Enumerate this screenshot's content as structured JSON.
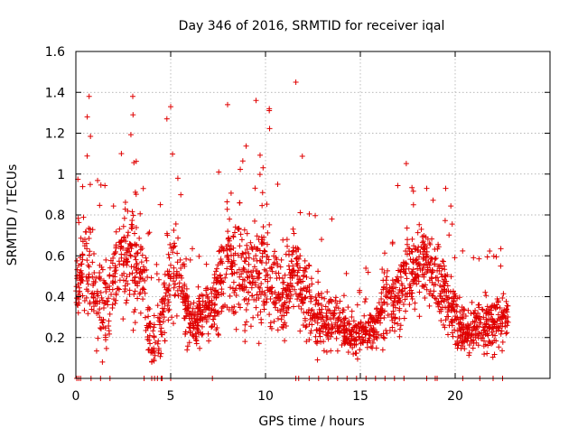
{
  "chart_data": {
    "type": "scatter",
    "title": "Day 346 of 2016, SRMTID for receiver iqal",
    "xlabel": "GPS time / hours",
    "ylabel": "SRMTID / TECUs",
    "xlim": [
      0,
      25
    ],
    "ylim": [
      0,
      1.6
    ],
    "x_ticks": [
      "0",
      "5",
      "10",
      "15",
      "20"
    ],
    "y_ticks": [
      "0",
      "0.2",
      "0.4",
      "0.6",
      "0.8",
      "1",
      "1.2",
      "1.4",
      "1.6"
    ],
    "x_tick_values": [
      0,
      5,
      10,
      15,
      20
    ],
    "y_tick_values": [
      0,
      0.2,
      0.4,
      0.6,
      0.8,
      1.0,
      1.2,
      1.4,
      1.6
    ],
    "grid": true,
    "marker": "+",
    "color": "#e00000",
    "series": [
      {
        "name": "SRMTID",
        "envelope_mean": [
          [
            0.0,
            0.48
          ],
          [
            0.5,
            0.58
          ],
          [
            1.0,
            0.42
          ],
          [
            1.5,
            0.36
          ],
          [
            2.0,
            0.5
          ],
          [
            2.5,
            0.62
          ],
          [
            3.0,
            0.6
          ],
          [
            3.5,
            0.55
          ],
          [
            4.0,
            0.12
          ],
          [
            4.5,
            0.3
          ],
          [
            5.0,
            0.55
          ],
          [
            5.5,
            0.5
          ],
          [
            6.0,
            0.26
          ],
          [
            6.5,
            0.28
          ],
          [
            7.0,
            0.35
          ],
          [
            7.5,
            0.42
          ],
          [
            8.0,
            0.62
          ],
          [
            8.5,
            0.55
          ],
          [
            9.0,
            0.45
          ],
          [
            9.5,
            0.48
          ],
          [
            10.0,
            0.55
          ],
          [
            10.5,
            0.42
          ],
          [
            11.0,
            0.4
          ],
          [
            11.5,
            0.52
          ],
          [
            12.0,
            0.42
          ],
          [
            12.5,
            0.3
          ],
          [
            13.0,
            0.28
          ],
          [
            13.5,
            0.3
          ],
          [
            14.0,
            0.25
          ],
          [
            14.5,
            0.2
          ],
          [
            15.0,
            0.2
          ],
          [
            15.5,
            0.22
          ],
          [
            16.0,
            0.3
          ],
          [
            16.5,
            0.38
          ],
          [
            17.0,
            0.4
          ],
          [
            17.5,
            0.52
          ],
          [
            18.0,
            0.55
          ],
          [
            18.5,
            0.58
          ],
          [
            19.0,
            0.5
          ],
          [
            19.5,
            0.42
          ],
          [
            20.0,
            0.28
          ],
          [
            20.5,
            0.22
          ],
          [
            21.0,
            0.24
          ],
          [
            21.5,
            0.26
          ],
          [
            22.0,
            0.27
          ],
          [
            22.5,
            0.28
          ]
        ],
        "envelope_spread": [
          [
            0.0,
            0.25
          ],
          [
            1.0,
            0.4
          ],
          [
            2.0,
            0.3
          ],
          [
            3.0,
            0.45
          ],
          [
            4.0,
            0.3
          ],
          [
            5.0,
            0.4
          ],
          [
            6.0,
            0.2
          ],
          [
            7.0,
            0.2
          ],
          [
            8.0,
            0.42
          ],
          [
            9.0,
            0.35
          ],
          [
            10.0,
            0.45
          ],
          [
            11.0,
            0.3
          ],
          [
            12.0,
            0.35
          ],
          [
            13.0,
            0.2
          ],
          [
            14.0,
            0.18
          ],
          [
            15.0,
            0.15
          ],
          [
            16.0,
            0.2
          ],
          [
            17.0,
            0.3
          ],
          [
            18.0,
            0.3
          ],
          [
            19.0,
            0.3
          ],
          [
            20.0,
            0.25
          ],
          [
            21.0,
            0.18
          ],
          [
            22.5,
            0.2
          ]
        ],
        "notable_points": [
          [
            0.7,
            1.38
          ],
          [
            3.0,
            1.38
          ],
          [
            9.5,
            1.36
          ],
          [
            11.6,
            1.45
          ],
          [
            5.0,
            1.33
          ],
          [
            10.2,
            1.32
          ],
          [
            8.0,
            1.34
          ],
          [
            0.6,
            1.28
          ],
          [
            4.8,
            1.27
          ],
          [
            2.4,
            1.1
          ],
          [
            18.5,
            0.93
          ],
          [
            19.5,
            0.93
          ],
          [
            17.8,
            0.85
          ],
          [
            22.4,
            0.55
          ],
          [
            13.5,
            0.78
          ],
          [
            16.2,
            0.48
          ],
          [
            4.0,
            0.08
          ],
          [
            1.4,
            0.08
          ]
        ],
        "zero_points": [
          0.05,
          0.15,
          0.25,
          0.8,
          1.3,
          1.8,
          3.6,
          4.0,
          4.15,
          4.3,
          4.5,
          4.55,
          5.0,
          7.2,
          11.6,
          11.75,
          12.3,
          12.8,
          13.3,
          13.8,
          14.3,
          14.8,
          15.3,
          15.8,
          16.3,
          16.8,
          17.3,
          18.5,
          18.95,
          19.05,
          20.4,
          21.3,
          22.0,
          22.5
        ],
        "sample_count": 2200,
        "x_range": [
          0.0,
          22.8
        ]
      }
    ]
  }
}
